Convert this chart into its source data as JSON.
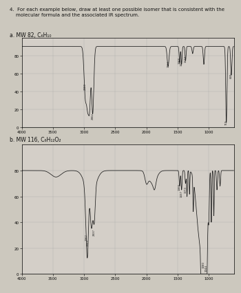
{
  "title_line1": "4.  For each example below, draw at least one possible isomer that is consistent with the",
  "title_line2": "    molecular formula and the associated IR spectrum.",
  "background_color": "#ccc8be",
  "plot_bg_color": "#d4cfc8",
  "panel_a_label": "a. MW 82, C₆H₁₀",
  "panel_b_label": "b. MW 116, C₆H₁₂O₂",
  "spectrum_color": "#1a1a1a",
  "grid_color": "#a0a0a0",
  "annotation_color": "#222222",
  "yticks": [
    0,
    20,
    40,
    60,
    80
  ],
  "xticks": [
    4000,
    3500,
    3000,
    2500,
    2000,
    1500,
    1000
  ]
}
